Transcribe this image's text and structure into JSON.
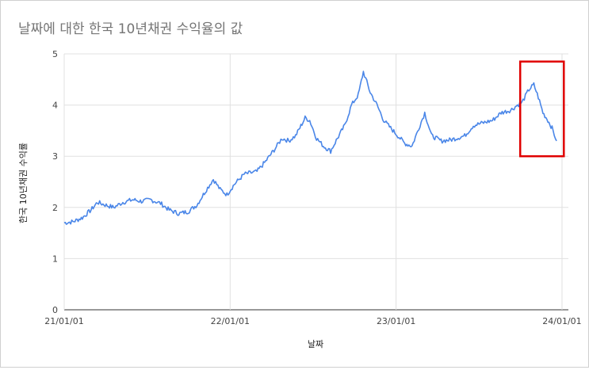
{
  "chart_data": {
    "type": "line",
    "title": "날짜에 대한 한국 10년채권 수익율의 값",
    "xlabel": "날짜",
    "ylabel": "한국 10년채권 수익률",
    "ylim": [
      0,
      5
    ],
    "yticks": [
      "0",
      "1",
      "2",
      "3",
      "4",
      "5"
    ],
    "xlim": [
      "2021-01-01",
      "2024-01-15"
    ],
    "xticks": [
      {
        "date": "2021-01-01",
        "label": "21/01/01"
      },
      {
        "date": "2022-01-01",
        "label": "22/01/01"
      },
      {
        "date": "2023-01-01",
        "label": "23/01/01"
      },
      {
        "date": "2024-01-01",
        "label": "24/01/01"
      }
    ],
    "grid": true,
    "series": [
      {
        "color": "#4a86e8",
        "points": [
          [
            "2021-01-01",
            1.7
          ],
          [
            "2021-01-20",
            1.72
          ],
          [
            "2021-02-10",
            1.8
          ],
          [
            "2021-03-01",
            1.95
          ],
          [
            "2021-03-15",
            2.1
          ],
          [
            "2021-04-01",
            2.05
          ],
          [
            "2021-04-20",
            2.0
          ],
          [
            "2021-05-10",
            2.1
          ],
          [
            "2021-06-01",
            2.15
          ],
          [
            "2021-06-20",
            2.12
          ],
          [
            "2021-07-10",
            2.15
          ],
          [
            "2021-08-01",
            2.08
          ],
          [
            "2021-08-20",
            1.95
          ],
          [
            "2021-09-10",
            1.88
          ],
          [
            "2021-10-01",
            1.92
          ],
          [
            "2021-10-20",
            2.05
          ],
          [
            "2021-11-10",
            2.35
          ],
          [
            "2021-11-25",
            2.55
          ],
          [
            "2021-12-10",
            2.35
          ],
          [
            "2021-12-25",
            2.25
          ],
          [
            "2022-01-10",
            2.45
          ],
          [
            "2022-02-01",
            2.65
          ],
          [
            "2022-03-01",
            2.7
          ],
          [
            "2022-03-20",
            2.9
          ],
          [
            "2022-04-10",
            3.15
          ],
          [
            "2022-04-25",
            3.35
          ],
          [
            "2022-05-10",
            3.3
          ],
          [
            "2022-05-25",
            3.4
          ],
          [
            "2022-06-15",
            3.75
          ],
          [
            "2022-06-25",
            3.7
          ],
          [
            "2022-07-10",
            3.35
          ],
          [
            "2022-07-25",
            3.2
          ],
          [
            "2022-08-10",
            3.1
          ],
          [
            "2022-08-25",
            3.35
          ],
          [
            "2022-09-10",
            3.6
          ],
          [
            "2022-09-25",
            4.0
          ],
          [
            "2022-10-10",
            4.2
          ],
          [
            "2022-10-21",
            4.65
          ],
          [
            "2022-11-05",
            4.25
          ],
          [
            "2022-11-20",
            4.0
          ],
          [
            "2022-12-05",
            3.7
          ],
          [
            "2022-12-20",
            3.55
          ],
          [
            "2023-01-05",
            3.4
          ],
          [
            "2023-01-20",
            3.25
          ],
          [
            "2023-02-05",
            3.2
          ],
          [
            "2023-02-20",
            3.55
          ],
          [
            "2023-03-05",
            3.85
          ],
          [
            "2023-03-20",
            3.4
          ],
          [
            "2023-04-10",
            3.3
          ],
          [
            "2023-05-01",
            3.32
          ],
          [
            "2023-06-01",
            3.4
          ],
          [
            "2023-06-20",
            3.6
          ],
          [
            "2023-07-10",
            3.65
          ],
          [
            "2023-08-01",
            3.7
          ],
          [
            "2023-08-20",
            3.85
          ],
          [
            "2023-09-10",
            3.9
          ],
          [
            "2023-09-25",
            4.0
          ],
          [
            "2023-10-05",
            4.05
          ],
          [
            "2023-10-20",
            4.3
          ],
          [
            "2023-10-31",
            4.4
          ],
          [
            "2023-11-10",
            4.15
          ],
          [
            "2023-11-20",
            3.85
          ],
          [
            "2023-12-01",
            3.7
          ],
          [
            "2023-12-10",
            3.55
          ],
          [
            "2023-12-20",
            3.3
          ]
        ]
      }
    ],
    "annotations": [
      {
        "type": "highlight-box",
        "color": "#e00000",
        "x_from": "2023-10-01",
        "x_to": "2024-01-05",
        "y_from": 3.0,
        "y_to": 4.85
      }
    ]
  }
}
